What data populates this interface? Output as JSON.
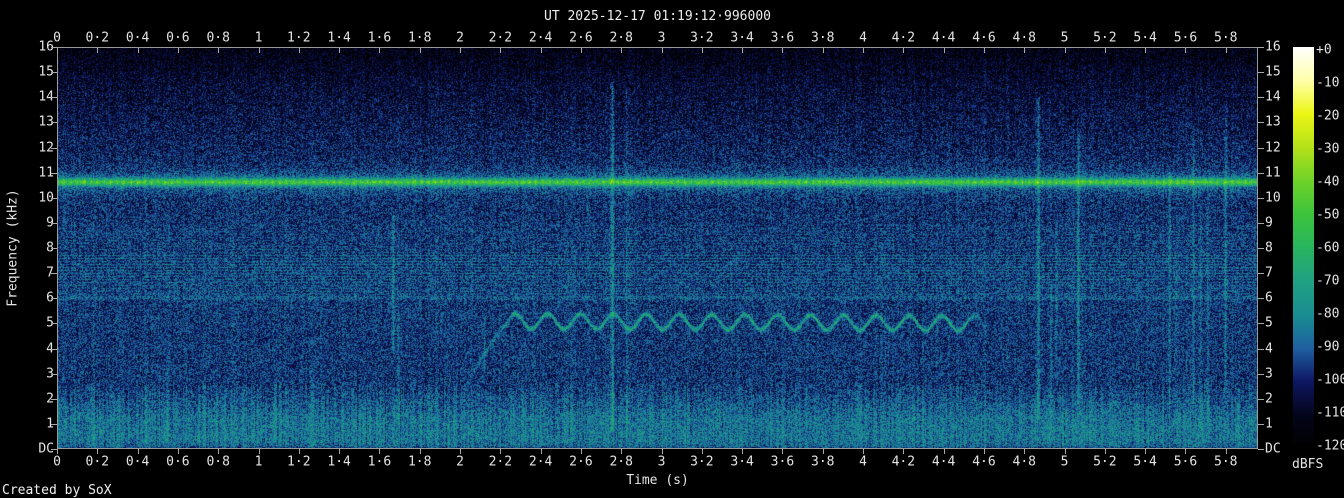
{
  "title": "UT 2025-12-17 01:19:12·996000",
  "credit": "Created by SoX",
  "chart_data": {
    "type": "heatmap",
    "subtype": "audio-spectrogram",
    "title": "UT 2025-12-17 01:19:12·996000",
    "xlabel": "Time (s)",
    "ylabel": "Frequency (kHz)",
    "colorbar_unit": "dBFS",
    "x_range_s": [
      0,
      5.96
    ],
    "y_range_khz": [
      0,
      16
    ],
    "z_range_dbfs": [
      -120,
      0
    ],
    "x_tick_step_s": 0.2,
    "x_tick_labels": [
      "0",
      "0·2",
      "0·4",
      "0·6",
      "0·8",
      "1",
      "1·2",
      "1·4",
      "1·6",
      "1·8",
      "2",
      "2·2",
      "2·4",
      "2·6",
      "2·8",
      "3",
      "3·2",
      "3·4",
      "3·6",
      "3·8",
      "4",
      "4·2",
      "4·4",
      "4·6",
      "4·8",
      "5",
      "5·2",
      "5·4",
      "5·6",
      "5·8"
    ],
    "y_tick_labels": [
      "16",
      "15",
      "14",
      "13",
      "12",
      "11",
      "10",
      "9",
      "8",
      "7",
      "6",
      "5",
      "4",
      "3",
      "2",
      "1",
      "DC"
    ],
    "colorbar_tick_labels": [
      "+0",
      "-10",
      "-20",
      "-30",
      "-40",
      "-50",
      "-60",
      "-70",
      "-80",
      "-90",
      "-100",
      "-110",
      "-120"
    ],
    "palette_stops_dbfs_rgb": [
      [
        -120,
        [
          0,
          0,
          0
        ]
      ],
      [
        -110,
        [
          4,
          4,
          26
        ]
      ],
      [
        -100,
        [
          14,
          22,
          96
        ]
      ],
      [
        -90,
        [
          30,
          95,
          160
        ]
      ],
      [
        -80,
        [
          25,
          141,
          145
        ]
      ],
      [
        -70,
        [
          32,
          161,
          131
        ]
      ],
      [
        -60,
        [
          40,
          180,
          95
        ]
      ],
      [
        -50,
        [
          60,
          195,
          60
        ]
      ],
      [
        -40,
        [
          110,
          210,
          40
        ]
      ],
      [
        -30,
        [
          180,
          225,
          25
        ]
      ],
      [
        -20,
        [
          235,
          245,
          20
        ]
      ],
      [
        -10,
        [
          255,
          255,
          170
        ]
      ],
      [
        0,
        [
          255,
          255,
          255
        ]
      ]
    ],
    "features": {
      "noise_floor_db_by_khz": [
        [
          0,
          -98
        ],
        [
          0.1,
          -88
        ],
        [
          0.35,
          -84
        ],
        [
          1.2,
          -85
        ],
        [
          2.6,
          -96
        ],
        [
          6,
          -95.5
        ],
        [
          9,
          -96.5
        ],
        [
          11.5,
          -99
        ],
        [
          14.5,
          -107
        ],
        [
          16,
          -115
        ]
      ],
      "pulsed_tone": {
        "freq_khz": 10.62,
        "bead_period_s": 0.0335,
        "sigma_khz": 0.1,
        "core_db": 33,
        "bead_db": 11,
        "glow_sigma_khz": 0.32,
        "glow_db": 12
      },
      "harmonic_comb": {
        "f_lo_khz": 6.05,
        "f_hi_khz": 7.75,
        "spacing_khz": 0.118,
        "db": 9,
        "faint_f_hi_khz": 8.9,
        "faint_db": 4
      },
      "band_edge_line": {
        "freq_khz": 6.0,
        "db": 7,
        "sigma_khz": 0.05
      },
      "warble_whistle": {
        "t_start_s": 2.02,
        "rise_end_s": 2.26,
        "f_start_khz": 2.1,
        "f_top_khz": 5.3,
        "t_end_s": 4.63,
        "center_khz": 5.08,
        "drift_khz": -0.08,
        "osc_amp_khz": 0.3,
        "osc_period_s": 0.163,
        "sigma_khz": 0.07,
        "db": 26,
        "rise_db": 18
      },
      "click_transients": [
        [
          0.545,
          0.3,
          3.2,
          7,
          0.8
        ],
        [
          1.08,
          0.3,
          2.6,
          6,
          0.8
        ],
        [
          1.665,
          3.8,
          9.3,
          13,
          1.0
        ],
        [
          1.69,
          0.8,
          5.5,
          7,
          0.8
        ],
        [
          2.12,
          3.1,
          5.3,
          12,
          0.8
        ],
        [
          2.755,
          0.7,
          14.6,
          16,
          1.1
        ],
        [
          2.825,
          0.5,
          14.3,
          8,
          0.8
        ],
        [
          4.87,
          1.2,
          14.0,
          15,
          1.0
        ],
        [
          4.935,
          0.4,
          6.5,
          9,
          0.8
        ],
        [
          4.96,
          2.5,
          9.0,
          8,
          0.8
        ],
        [
          5.065,
          1.8,
          12.6,
          13,
          1.0
        ],
        [
          5.52,
          1.8,
          11.2,
          11,
          0.9
        ],
        [
          5.55,
          0.8,
          8.0,
          7,
          0.8
        ],
        [
          5.635,
          1.8,
          12.8,
          12,
          0.9
        ],
        [
          5.67,
          0.8,
          9.2,
          7,
          0.8
        ],
        [
          5.705,
          1.2,
          10.0,
          7,
          0.8
        ],
        [
          5.795,
          2.3,
          13.6,
          11,
          0.9
        ]
      ],
      "low_freq_striation": {
        "f_max_khz": 2.6,
        "db": 9
      }
    },
    "render": {
      "seed": 20251217,
      "speckle_db": 26,
      "column_noise_db": 5
    }
  }
}
